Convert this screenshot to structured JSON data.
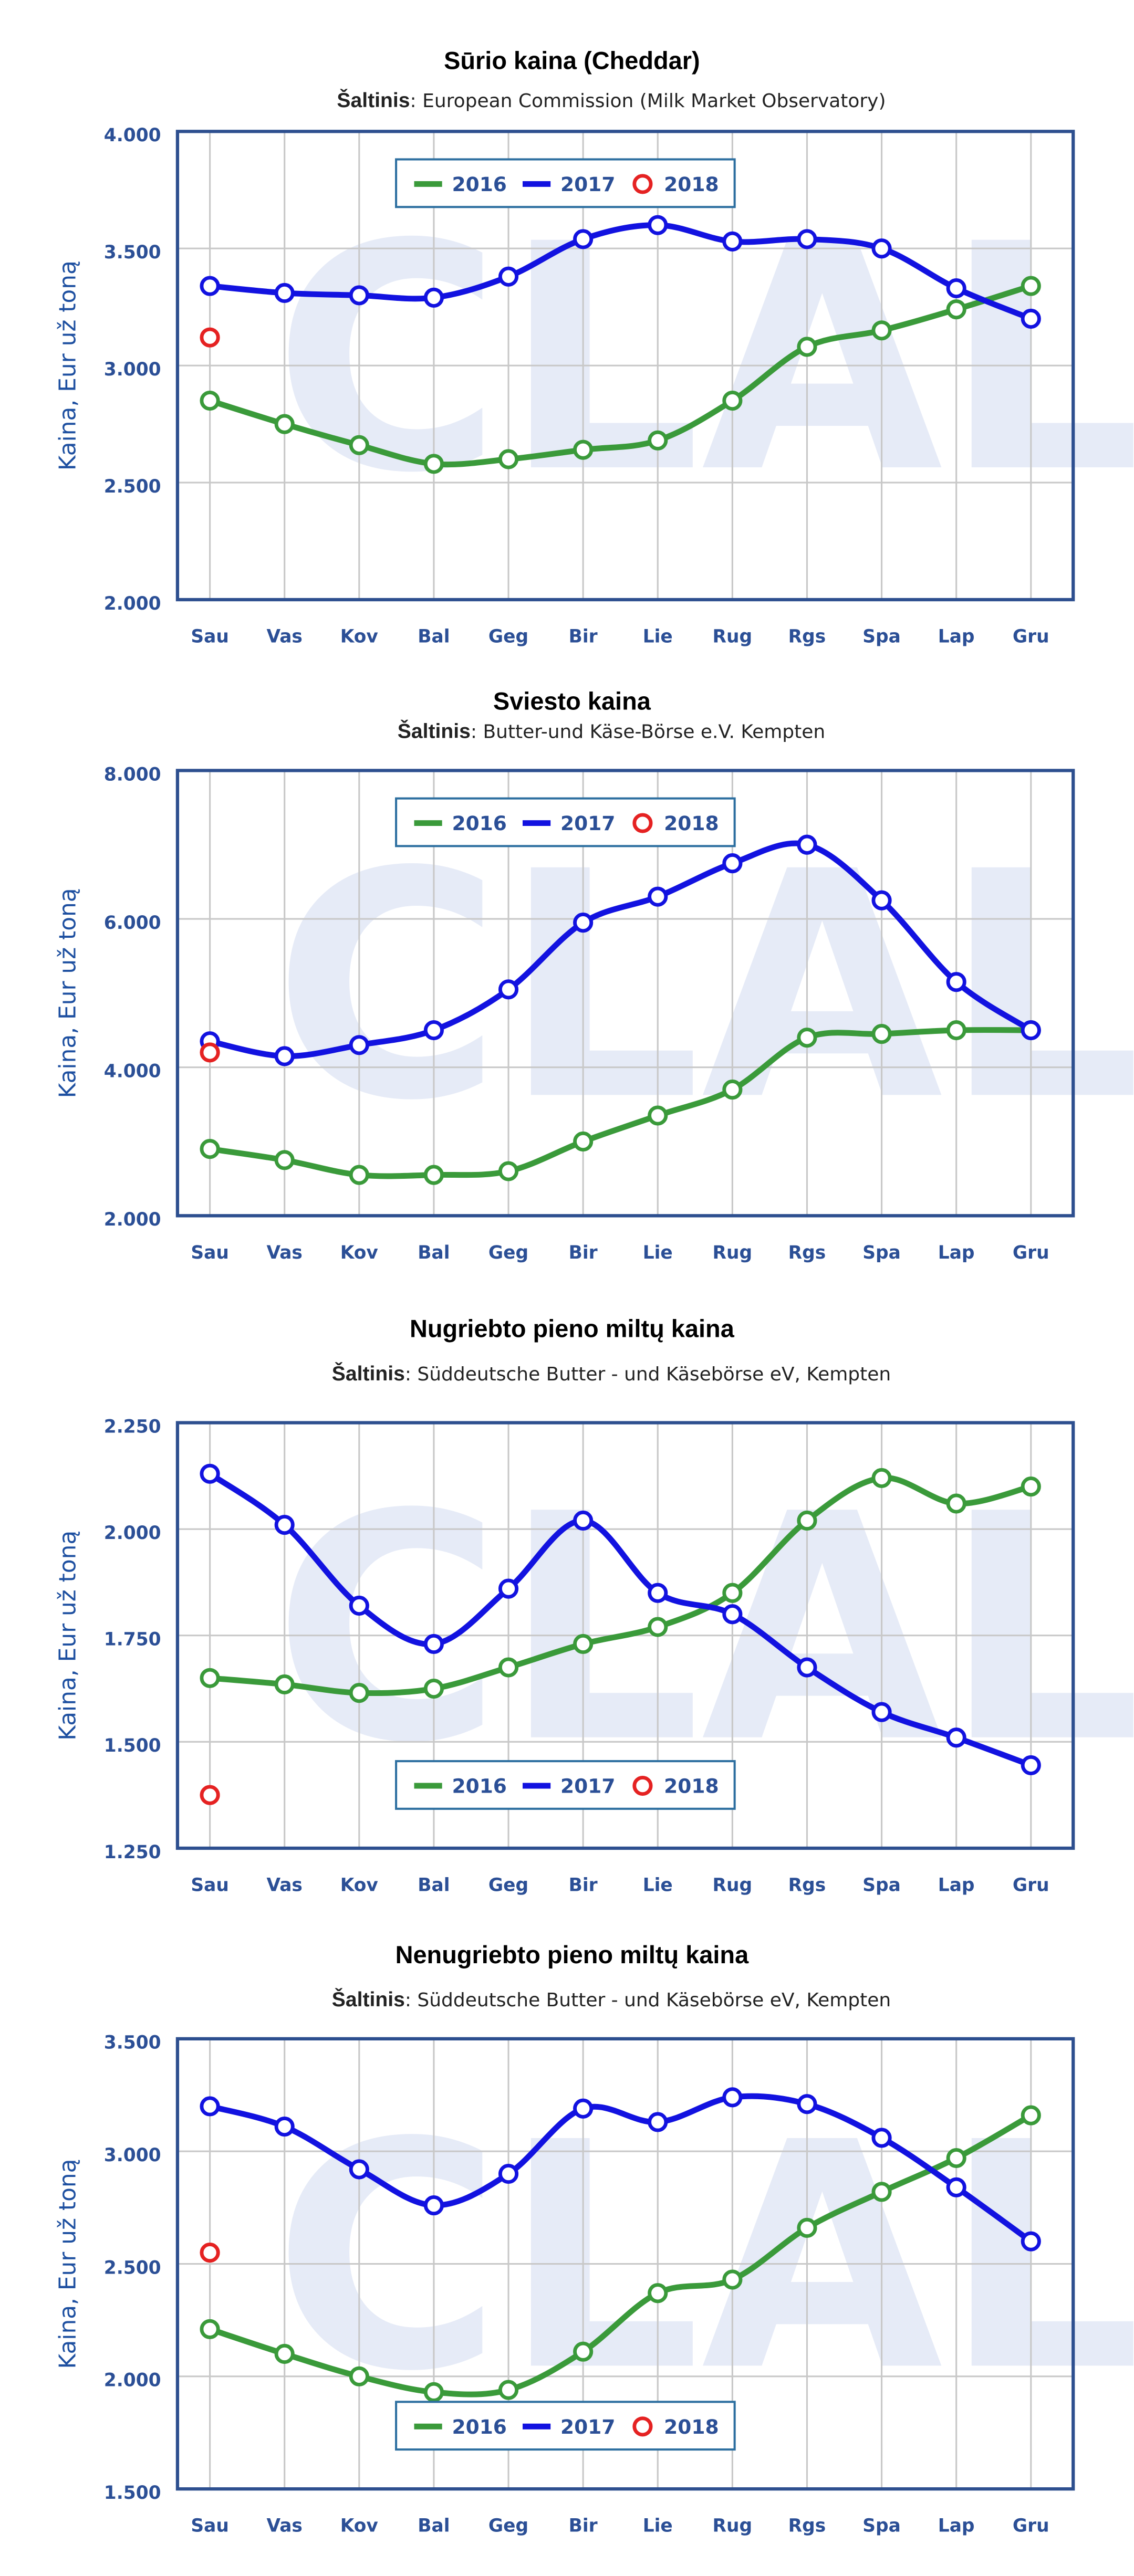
{
  "chart_data": [
    {
      "type": "line",
      "title": "Sūrio kaina (Cheddar)",
      "subtitle_label": "Šaltinis",
      "subtitle": ": European Commission (Milk Market Observatory)",
      "ylabel": "Kaina, Eur už toną",
      "watermark": "CLAL",
      "categories": [
        "Sau",
        "Vas",
        "Kov",
        "Bal",
        "Geg",
        "Bir",
        "Lie",
        "Rug",
        "Rgs",
        "Spa",
        "Lap",
        "Gru"
      ],
      "series": [
        {
          "name": "2016",
          "color": "#3a9a3a",
          "values": [
            2850,
            2750,
            2660,
            2580,
            2600,
            2640,
            2680,
            2850,
            3080,
            3150,
            3240,
            3340
          ]
        },
        {
          "name": "2017",
          "color": "#1212e0",
          "values": [
            3340,
            3310,
            3300,
            3290,
            3380,
            3540,
            3600,
            3530,
            3540,
            3500,
            3330,
            3200
          ]
        },
        {
          "name": "2018",
          "color": "#e52222",
          "values": [
            3120,
            null,
            null,
            null,
            null,
            null,
            null,
            null,
            null,
            null,
            null,
            null
          ]
        }
      ],
      "ylim": [
        2000,
        4000
      ],
      "yticks": [
        {
          "value": 2000,
          "label": "2.000"
        },
        {
          "value": 2500,
          "label": "2.500"
        },
        {
          "value": 3000,
          "label": "3.000"
        },
        {
          "value": 3500,
          "label": "3.500"
        },
        {
          "value": 4000,
          "label": "4.000"
        }
      ],
      "grid": true,
      "legend": "top"
    },
    {
      "type": "line",
      "title": "Sviesto kaina",
      "subtitle_label": "Šaltinis",
      "subtitle": ": Butter-und Käse-Börse e.V. Kempten",
      "ylabel": "Kaina, Eur už toną",
      "watermark": "CLAL",
      "categories": [
        "Sau",
        "Vas",
        "Kov",
        "Bal",
        "Geg",
        "Bir",
        "Lie",
        "Rug",
        "Rgs",
        "Spa",
        "Lap",
        "Gru"
      ],
      "series": [
        {
          "name": "2016",
          "color": "#3a9a3a",
          "values": [
            2900,
            2750,
            2550,
            2550,
            2600,
            3000,
            3350,
            3700,
            4400,
            4450,
            4500,
            4500
          ]
        },
        {
          "name": "2017",
          "color": "#1212e0",
          "values": [
            4350,
            4150,
            4300,
            4500,
            5050,
            5950,
            6300,
            6750,
            7000,
            6250,
            5150,
            4500
          ]
        },
        {
          "name": "2018",
          "color": "#e52222",
          "values": [
            4200,
            null,
            null,
            null,
            null,
            null,
            null,
            null,
            null,
            null,
            null,
            null
          ]
        }
      ],
      "ylim": [
        2000,
        8000
      ],
      "yticks": [
        {
          "value": 2000,
          "label": "2.000"
        },
        {
          "value": 4000,
          "label": "4.000"
        },
        {
          "value": 6000,
          "label": "6.000"
        },
        {
          "value": 8000,
          "label": "8.000"
        }
      ],
      "grid": true,
      "legend": "top"
    },
    {
      "type": "line",
      "title": "Nugriebto pieno miltų kaina",
      "subtitle_label": "Šaltinis",
      "subtitle": ": Süddeutsche Butter - und Käsebörse eV, Kempten",
      "ylabel": "Kaina, Eur už toną",
      "watermark": "CLAL",
      "categories": [
        "Sau",
        "Vas",
        "Kov",
        "Bal",
        "Geg",
        "Bir",
        "Lie",
        "Rug",
        "Rgs",
        "Spa",
        "Lap",
        "Gru"
      ],
      "series": [
        {
          "name": "2016",
          "color": "#3a9a3a",
          "values": [
            1650,
            1635,
            1615,
            1625,
            1675,
            1730,
            1770,
            1850,
            2020,
            2120,
            2060,
            2100
          ]
        },
        {
          "name": "2017",
          "color": "#1212e0",
          "values": [
            2130,
            2010,
            1820,
            1730,
            1860,
            2020,
            1850,
            1800,
            1675,
            1570,
            1510,
            1445
          ]
        },
        {
          "name": "2018",
          "color": "#e52222",
          "values": [
            1375,
            null,
            null,
            null,
            null,
            null,
            null,
            null,
            null,
            null,
            null,
            null
          ]
        }
      ],
      "ylim": [
        1250,
        2250
      ],
      "yticks": [
        {
          "value": 1250,
          "label": "1.250"
        },
        {
          "value": 1500,
          "label": "1.500"
        },
        {
          "value": 1750,
          "label": "1.750"
        },
        {
          "value": 2000,
          "label": "2.000"
        },
        {
          "value": 2250,
          "label": "2.250"
        }
      ],
      "grid": true,
      "legend": "bottom"
    },
    {
      "type": "line",
      "title": "Nenugriebto pieno miltų kaina",
      "subtitle_label": "Šaltinis",
      "subtitle": ": Süddeutsche Butter - und Käsebörse eV, Kempten",
      "ylabel": "Kaina, Eur už toną",
      "watermark": "CLAL",
      "categories": [
        "Sau",
        "Vas",
        "Kov",
        "Bal",
        "Geg",
        "Bir",
        "Lie",
        "Rug",
        "Rgs",
        "Spa",
        "Lap",
        "Gru"
      ],
      "series": [
        {
          "name": "2016",
          "color": "#3a9a3a",
          "values": [
            2210,
            2100,
            2000,
            1930,
            1940,
            2110,
            2370,
            2430,
            2660,
            2820,
            2970,
            3160
          ]
        },
        {
          "name": "2017",
          "color": "#1212e0",
          "values": [
            3200,
            3110,
            2920,
            2760,
            2900,
            3190,
            3130,
            3240,
            3210,
            3060,
            2840,
            2600
          ]
        },
        {
          "name": "2018",
          "color": "#e52222",
          "values": [
            2550,
            null,
            null,
            null,
            null,
            null,
            null,
            null,
            null,
            null,
            null,
            null
          ]
        }
      ],
      "ylim": [
        1500,
        3500
      ],
      "yticks": [
        {
          "value": 1500,
          "label": "1.500"
        },
        {
          "value": 2000,
          "label": "2.000"
        },
        {
          "value": 2500,
          "label": "2.500"
        },
        {
          "value": 3000,
          "label": "3.000"
        },
        {
          "value": 3500,
          "label": "3.500"
        }
      ],
      "grid": true,
      "legend": "bottom"
    }
  ]
}
